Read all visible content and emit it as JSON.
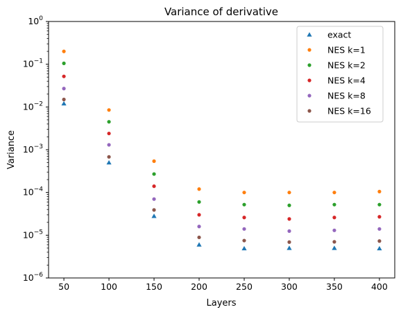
{
  "chart_data": {
    "type": "scatter",
    "title": "Variance of derivative",
    "xlabel": "Layers",
    "ylabel": "Variance",
    "yscale": "log",
    "xlim": [
      33,
      417
    ],
    "ylim": [
      1e-06,
      1
    ],
    "x_ticks": [
      50,
      100,
      150,
      200,
      250,
      300,
      350,
      400
    ],
    "x_tick_labels": [
      "50",
      "100",
      "150",
      "200",
      "250",
      "300",
      "350",
      "400"
    ],
    "y_ticks": [
      {
        "value": 1e-06,
        "base": "10",
        "exp": "−6"
      },
      {
        "value": 1e-05,
        "base": "10",
        "exp": "−5"
      },
      {
        "value": 0.0001,
        "base": "10",
        "exp": "−4"
      },
      {
        "value": 0.001,
        "base": "10",
        "exp": "−3"
      },
      {
        "value": 0.01,
        "base": "10",
        "exp": "−2"
      },
      {
        "value": 0.1,
        "base": "10",
        "exp": "−1"
      },
      {
        "value": 1,
        "base": "10",
        "exp": "0"
      }
    ],
    "grid": false,
    "legend_position": "top-right",
    "x": [
      50,
      100,
      150,
      200,
      250,
      300,
      350,
      400
    ],
    "series": [
      {
        "name": "exact",
        "marker": "triangle",
        "color": "#1f77b4",
        "values": [
          0.012,
          0.0005,
          2.8e-05,
          6e-06,
          4.9e-06,
          5e-06,
          5e-06,
          4.9e-06
        ]
      },
      {
        "name": "NES k=1",
        "marker": "circle",
        "color": "#ff7f0e",
        "values": [
          0.2,
          0.0085,
          0.00054,
          0.00012,
          0.0001,
          0.0001,
          0.0001,
          0.000105
        ]
      },
      {
        "name": "NES k=2",
        "marker": "circle",
        "color": "#2ca02c",
        "values": [
          0.105,
          0.0045,
          0.00027,
          6e-05,
          5.2e-05,
          5e-05,
          5.2e-05,
          5.2e-05
        ]
      },
      {
        "name": "NES k=4",
        "marker": "circle",
        "color": "#d62728",
        "values": [
          0.052,
          0.0024,
          0.00014,
          3e-05,
          2.6e-05,
          2.4e-05,
          2.6e-05,
          2.7e-05
        ]
      },
      {
        "name": "NES k=8",
        "marker": "circle",
        "color": "#9467bd",
        "values": [
          0.027,
          0.0013,
          7e-05,
          1.6e-05,
          1.4e-05,
          1.25e-05,
          1.3e-05,
          1.4e-05
        ]
      },
      {
        "name": "NES k=16",
        "marker": "circle",
        "color": "#8c564b",
        "values": [
          0.015,
          0.00068,
          3.9e-05,
          8.9e-06,
          7.5e-06,
          6.9e-06,
          7e-06,
          7.3e-06
        ]
      }
    ]
  }
}
